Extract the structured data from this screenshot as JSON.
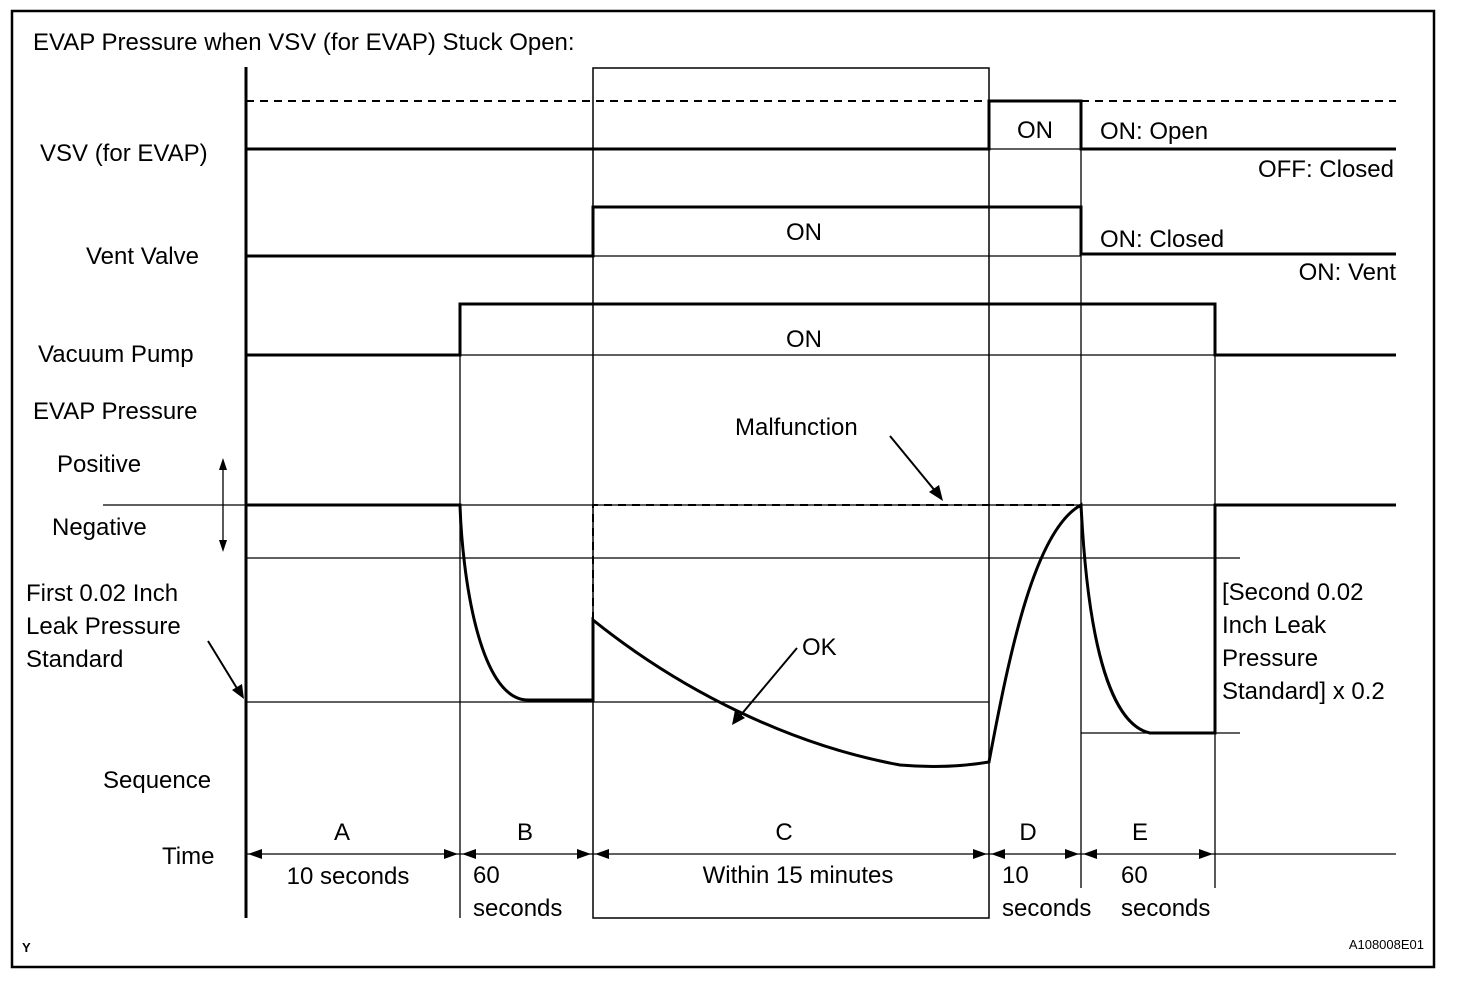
{
  "title": "EVAP Pressure when VSV (for EVAP) Stuck Open:",
  "rows": {
    "vsv": "VSV (for EVAP)",
    "vent_valve": "Vent Valve",
    "vacuum_pump": "Vacuum Pump",
    "evap_pressure": "EVAP Pressure",
    "positive": "Positive",
    "negative": "Negative",
    "first_std": [
      "First 0.02 Inch",
      "Leak Pressure",
      "Standard"
    ],
    "sequence": "Sequence",
    "time": "Time"
  },
  "states": {
    "vsv_on": "ON",
    "vsv_on_open": "ON: Open",
    "vsv_off_closed": "OFF: Closed",
    "vent_on": "ON",
    "vent_on_closed": "ON: Closed",
    "vent_on_vent": "ON: Vent",
    "pump_on": "ON"
  },
  "annotations": {
    "malfunction": "Malfunction",
    "ok": "OK",
    "second_std": [
      "[Second 0.02",
      "Inch Leak",
      "Pressure",
      "Standard] x 0.2"
    ]
  },
  "sequence": [
    {
      "id": "A",
      "time": [
        "10 seconds"
      ]
    },
    {
      "id": "B",
      "time": [
        "60",
        "seconds"
      ]
    },
    {
      "id": "C",
      "time": [
        "Within 15 minutes"
      ]
    },
    {
      "id": "D",
      "time": [
        "10",
        "seconds"
      ]
    },
    {
      "id": "E",
      "time": [
        "60",
        "seconds"
      ]
    }
  ],
  "footer": {
    "left_mark": "Y",
    "figure_id": "A108008E01"
  }
}
